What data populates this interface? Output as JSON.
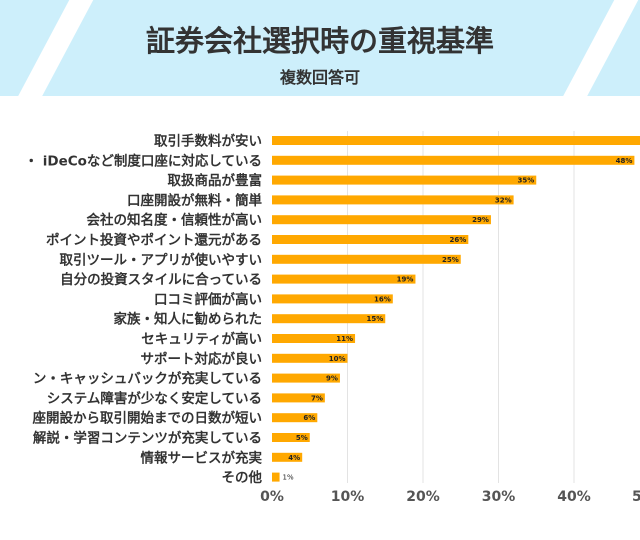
{
  "header": {
    "title": "証券会社選択時の重視基準",
    "subtitle": "複数回答可"
  },
  "colors": {
    "bar": "#ffa800",
    "header_bg": "#cdeffb",
    "grid": "#e3e3e3",
    "text": "#333333"
  },
  "chart_data": {
    "type": "bar",
    "orientation": "horizontal",
    "title": "証券会社選択時の重視基準",
    "subtitle": "複数回答可",
    "categories": [
      "取引手数料が安い",
      "・ iDeCoなど制度口座に対応している",
      "取扱商品が豊富",
      "口座開設が無料・簡単",
      "会社の知名度・信頼性が高い",
      "ポイント投資やポイント還元がある",
      "取引ツール・アプリが使いやすい",
      "自分の投資スタイルに合っている",
      "口コミ評価が高い",
      "家族・知人に勧められた",
      "セキュリティが高い",
      "サポート対応が良い",
      "ン・キャッシュバックが充実している",
      "システム障害が少なく安定している",
      "座開設から取引開始までの日数が短い",
      "解説・学習コンテンツが充実している",
      "情報サービスが充実",
      "その他"
    ],
    "values": [
      51,
      48,
      35,
      32,
      29,
      26,
      25,
      19,
      16,
      15,
      11,
      10,
      9,
      7,
      6,
      5,
      4,
      1
    ],
    "data_labels": [
      "",
      "48%",
      "35%",
      "32%",
      "29%",
      "26%",
      "25%",
      "19%",
      "16%",
      "15%",
      "11%",
      "10%",
      "9%",
      "7%",
      "6%",
      "5%",
      "4%",
      "1%"
    ],
    "xlabel": "",
    "ylabel": "",
    "xlim": [
      0,
      50
    ],
    "x_ticks": [
      "0%",
      "10%",
      "20%",
      "30%",
      "40%",
      "5"
    ],
    "x_tick_values": [
      0,
      10,
      20,
      30,
      40,
      50
    ],
    "grid": true,
    "legend": "none"
  }
}
